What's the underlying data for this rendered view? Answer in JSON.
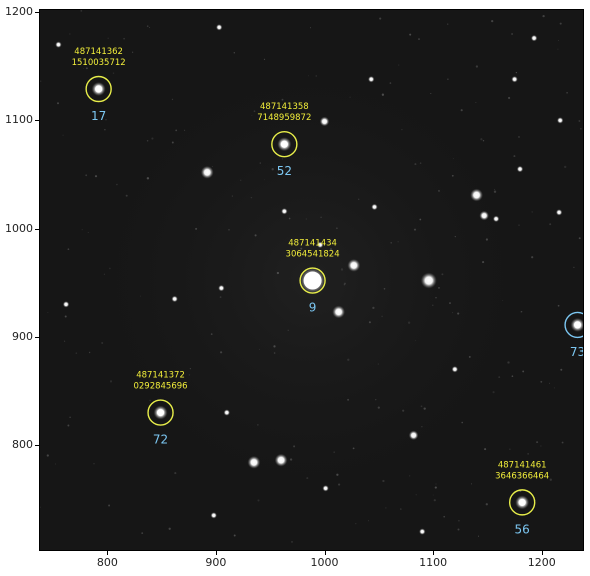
{
  "image": {
    "x_range": [
      738,
      1238
    ],
    "y_range": [
      703,
      1202
    ],
    "x_ticks": [
      800,
      900,
      1000,
      1100,
      1200
    ],
    "y_ticks": [
      800,
      900,
      1000,
      1100,
      1200
    ],
    "marked_sources": [
      {
        "id_line1": "487141362",
        "id_line2": "1510035712",
        "number": "17",
        "x": 792,
        "y": 1129,
        "circle_color": "#e8ee4a",
        "number_color": "#7cc7f2"
      },
      {
        "id_line1": "487141358",
        "id_line2": "7148959872",
        "number": "52",
        "x": 963,
        "y": 1078,
        "circle_color": "#e8ee4a",
        "number_color": "#7cc7f2"
      },
      {
        "id_line1": "487141434",
        "id_line2": "3064541824",
        "number": "9",
        "x": 989,
        "y": 952,
        "circle_color": "#e8ee4a",
        "number_color": "#7cc7f2"
      },
      {
        "id_line1": "487141372",
        "id_line2": "0292845696",
        "number": "72",
        "x": 849,
        "y": 830,
        "circle_color": "#e8ee4a",
        "number_color": "#7cc7f2"
      },
      {
        "id_line1": "487141461",
        "id_line2": "3646366464",
        "number": "56",
        "x": 1182,
        "y": 747,
        "circle_color": "#e8ee4a",
        "number_color": "#7cc7f2"
      },
      {
        "id_line1": "",
        "id_line2": "",
        "number": "73",
        "x": 1233,
        "y": 911,
        "circle_color": "#7cc7f2",
        "number_color": "#7cc7f2"
      }
    ],
    "background_sources": [
      {
        "x": 892,
        "y": 1052,
        "r": 4
      },
      {
        "x": 1000,
        "y": 1099,
        "r": 3
      },
      {
        "x": 1027,
        "y": 966,
        "r": 4
      },
      {
        "x": 1013,
        "y": 923,
        "r": 4
      },
      {
        "x": 1096,
        "y": 952,
        "r": 5
      },
      {
        "x": 935,
        "y": 784,
        "r": 4
      },
      {
        "x": 960,
        "y": 786,
        "r": 4
      },
      {
        "x": 1082,
        "y": 809,
        "r": 3
      },
      {
        "x": 1140,
        "y": 1031,
        "r": 4
      },
      {
        "x": 1147,
        "y": 1012,
        "r": 3
      },
      {
        "x": 1175,
        "y": 1138,
        "r": 2
      },
      {
        "x": 1193,
        "y": 1176,
        "r": 2
      },
      {
        "x": 903,
        "y": 1186,
        "r": 2
      },
      {
        "x": 963,
        "y": 1016,
        "r": 2
      },
      {
        "x": 1046,
        "y": 1020,
        "r": 2
      },
      {
        "x": 996,
        "y": 985,
        "r": 2
      },
      {
        "x": 1180,
        "y": 1055,
        "r": 2
      },
      {
        "x": 1043,
        "y": 1138,
        "r": 2
      },
      {
        "x": 1217,
        "y": 1100,
        "r": 2
      },
      {
        "x": 910,
        "y": 830,
        "r": 2
      },
      {
        "x": 862,
        "y": 935,
        "r": 2
      },
      {
        "x": 905,
        "y": 945,
        "r": 2
      },
      {
        "x": 1120,
        "y": 870,
        "r": 2
      },
      {
        "x": 1001,
        "y": 760,
        "r": 2
      },
      {
        "x": 1090,
        "y": 720,
        "r": 2
      },
      {
        "x": 898,
        "y": 735,
        "r": 2
      },
      {
        "x": 755,
        "y": 1170,
        "r": 2
      },
      {
        "x": 762,
        "y": 930,
        "r": 2
      },
      {
        "x": 1158,
        "y": 1009,
        "r": 2
      },
      {
        "x": 1216,
        "y": 1015,
        "r": 2
      }
    ]
  }
}
